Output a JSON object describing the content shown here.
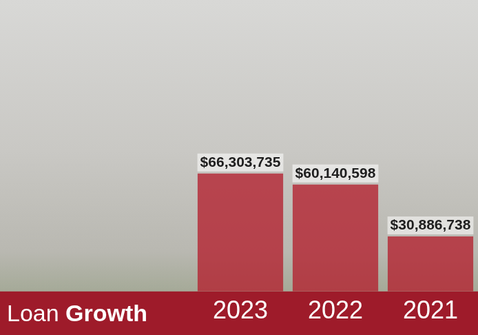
{
  "chart_data": {
    "type": "bar",
    "title": "Loan Growth",
    "categories": [
      "2023",
      "2022",
      "2021"
    ],
    "values": [
      66303735,
      60140598,
      30886738
    ],
    "value_labels": [
      "$66,303,735",
      "$60,140,598",
      "$30,886,738"
    ],
    "color": "#b3202e",
    "ylim": [
      0,
      160000000
    ],
    "grid": false,
    "data_labels": true,
    "tick_labels": "x"
  }
}
